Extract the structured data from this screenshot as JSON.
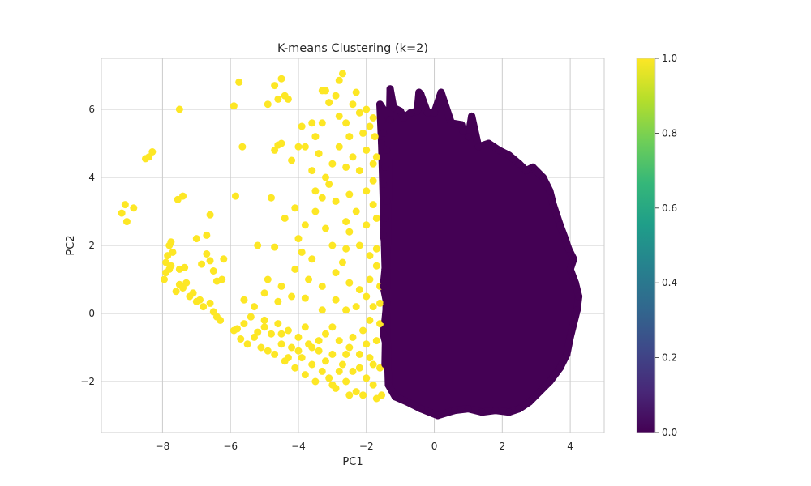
{
  "chart_data": {
    "type": "scatter",
    "title": "K-means Clustering (k=2)",
    "xlabel": "PC1",
    "ylabel": "PC2",
    "xlim": [
      -9.8,
      5.0
    ],
    "ylim": [
      -3.5,
      7.5
    ],
    "x_ticks": [
      -8,
      -6,
      -4,
      -2,
      0,
      2,
      4
    ],
    "x_tick_labels": [
      "−8",
      "−6",
      "−4",
      "−2",
      "0",
      "2",
      "4"
    ],
    "y_ticks": [
      -2,
      0,
      2,
      4,
      6
    ],
    "y_tick_labels": [
      "−2",
      "0",
      "2",
      "4",
      "6"
    ],
    "grid": true,
    "marker_size": 9,
    "colormap": "viridis",
    "colors": {
      "cluster_0": "#440154",
      "cluster_1": "#fde725",
      "grid": "#cccccc",
      "spine": "#cccccc",
      "text": "#262626"
    },
    "colorbar": {
      "range": [
        0.0,
        1.0
      ],
      "ticks": [
        0.0,
        0.2,
        0.4,
        0.6,
        0.8,
        1.0
      ],
      "tick_labels": [
        "0.0",
        "0.2",
        "0.4",
        "0.6",
        "0.8",
        "1.0"
      ],
      "stops": [
        "#440154",
        "#482878",
        "#3e4989",
        "#31688e",
        "#26828e",
        "#1f9e89",
        "#35b779",
        "#6ece58",
        "#b5de2b",
        "#fde725"
      ]
    },
    "series": [
      {
        "cluster": 1,
        "points": [
          [
            -9.2,
            2.95
          ],
          [
            -9.1,
            3.2
          ],
          [
            -9.05,
            2.7
          ],
          [
            -8.85,
            3.1
          ],
          [
            -8.5,
            4.55
          ],
          [
            -8.4,
            4.6
          ],
          [
            -8.3,
            4.75
          ],
          [
            -7.5,
            6.0
          ],
          [
            -7.4,
            3.45
          ],
          [
            -7.55,
            3.35
          ],
          [
            -6.6,
            2.9
          ],
          [
            -7.0,
            2.2
          ],
          [
            -6.7,
            2.3
          ],
          [
            -7.95,
            1.0
          ],
          [
            -7.9,
            1.2
          ],
          [
            -7.9,
            1.5
          ],
          [
            -7.85,
            1.7
          ],
          [
            -7.8,
            1.3
          ],
          [
            -7.8,
            2.0
          ],
          [
            -7.75,
            2.1
          ],
          [
            -7.75,
            1.4
          ],
          [
            -7.7,
            1.8
          ],
          [
            -7.5,
            1.3
          ],
          [
            -7.35,
            1.35
          ],
          [
            -7.6,
            0.65
          ],
          [
            -7.5,
            0.85
          ],
          [
            -7.4,
            0.75
          ],
          [
            -7.3,
            0.9
          ],
          [
            -7.2,
            0.5
          ],
          [
            -7.1,
            0.6
          ],
          [
            -7.0,
            0.35
          ],
          [
            -6.9,
            0.4
          ],
          [
            -6.8,
            0.2
          ],
          [
            -6.6,
            0.3
          ],
          [
            -6.5,
            0.05
          ],
          [
            -6.4,
            -0.1
          ],
          [
            -6.3,
            -0.2
          ],
          [
            -6.85,
            1.45
          ],
          [
            -6.7,
            1.75
          ],
          [
            -6.6,
            1.55
          ],
          [
            -6.5,
            1.25
          ],
          [
            -6.4,
            0.95
          ],
          [
            -6.25,
            1.0
          ],
          [
            -6.2,
            1.6
          ],
          [
            -5.9,
            6.1
          ],
          [
            -5.85,
            3.45
          ],
          [
            -5.75,
            6.8
          ],
          [
            -5.65,
            4.9
          ],
          [
            -5.9,
            -0.5
          ],
          [
            -5.8,
            -0.45
          ],
          [
            -5.7,
            -0.75
          ],
          [
            -5.6,
            -0.3
          ],
          [
            -5.5,
            -0.9
          ],
          [
            -5.4,
            -0.1
          ],
          [
            -5.3,
            -0.7
          ],
          [
            -5.2,
            -0.55
          ],
          [
            -5.1,
            -1.0
          ],
          [
            -5.0,
            -0.4
          ],
          [
            -5.0,
            -0.2
          ],
          [
            -4.9,
            -1.1
          ],
          [
            -4.8,
            -0.6
          ],
          [
            -4.7,
            -1.2
          ],
          [
            -4.6,
            -0.3
          ],
          [
            -4.5,
            -0.9
          ],
          [
            -4.4,
            -1.4
          ],
          [
            -4.3,
            -0.5
          ],
          [
            -4.2,
            -1.0
          ],
          [
            -4.1,
            -1.6
          ],
          [
            -4.0,
            -0.7
          ],
          [
            -3.9,
            -1.3
          ],
          [
            -3.8,
            -1.8
          ],
          [
            -3.7,
            -0.9
          ],
          [
            -3.6,
            -1.5
          ],
          [
            -3.5,
            -2.0
          ],
          [
            -3.4,
            -1.1
          ],
          [
            -3.3,
            -1.7
          ],
          [
            -3.2,
            -0.6
          ],
          [
            -3.1,
            -1.9
          ],
          [
            -3.0,
            -1.2
          ],
          [
            -2.9,
            -2.2
          ],
          [
            -2.8,
            -0.8
          ],
          [
            -2.7,
            -1.5
          ],
          [
            -2.6,
            -2.0
          ],
          [
            -2.5,
            -1.0
          ],
          [
            -2.4,
            -1.7
          ],
          [
            -2.3,
            -2.3
          ],
          [
            -2.2,
            -1.2
          ],
          [
            -2.1,
            -0.5
          ],
          [
            -2.0,
            -1.9
          ],
          [
            -1.9,
            -1.3
          ],
          [
            -1.8,
            -2.1
          ],
          [
            -1.7,
            -0.8
          ],
          [
            -1.6,
            -1.6
          ],
          [
            -1.55,
            -2.4
          ],
          [
            -4.5,
            -0.6
          ],
          [
            -4.3,
            -1.3
          ],
          [
            -4.0,
            -1.1
          ],
          [
            -3.8,
            -0.4
          ],
          [
            -3.6,
            -1.0
          ],
          [
            -3.4,
            -0.8
          ],
          [
            -3.2,
            -1.4
          ],
          [
            -3.0,
            -0.4
          ],
          [
            -2.8,
            -1.7
          ],
          [
            -2.6,
            -1.2
          ],
          [
            -2.4,
            -0.7
          ],
          [
            -2.2,
            -1.6
          ],
          [
            -2.0,
            -0.9
          ],
          [
            -1.8,
            -1.5
          ],
          [
            -1.7,
            -2.5
          ],
          [
            -2.5,
            -2.4
          ],
          [
            -3.0,
            -2.1
          ],
          [
            -2.1,
            -2.4
          ],
          [
            -1.6,
            -0.3
          ],
          [
            -1.9,
            -0.2
          ],
          [
            -5.6,
            0.4
          ],
          [
            -5.3,
            0.2
          ],
          [
            -5.0,
            0.6
          ],
          [
            -4.6,
            0.35
          ],
          [
            -4.2,
            0.5
          ],
          [
            -3.8,
            0.45
          ],
          [
            -3.3,
            0.1
          ],
          [
            -2.9,
            0.4
          ],
          [
            -2.6,
            0.1
          ],
          [
            -2.3,
            0.2
          ],
          [
            -2.0,
            0.5
          ],
          [
            -1.8,
            0.2
          ],
          [
            -1.6,
            0.3
          ],
          [
            -4.9,
            1.0
          ],
          [
            -4.5,
            0.8
          ],
          [
            -4.1,
            1.3
          ],
          [
            -3.7,
            1.0
          ],
          [
            -3.3,
            0.8
          ],
          [
            -2.9,
            1.2
          ],
          [
            -2.5,
            0.9
          ],
          [
            -2.2,
            0.7
          ],
          [
            -1.9,
            1.0
          ],
          [
            -1.7,
            1.4
          ],
          [
            -1.6,
            0.8
          ],
          [
            -5.2,
            2.0
          ],
          [
            -4.7,
            1.95
          ],
          [
            -4.0,
            2.2
          ],
          [
            -3.6,
            1.6
          ],
          [
            -3.0,
            2.0
          ],
          [
            -2.6,
            1.9
          ],
          [
            -2.2,
            2.0
          ],
          [
            -1.9,
            1.7
          ],
          [
            -1.7,
            1.9
          ],
          [
            -3.9,
            1.8
          ],
          [
            -2.7,
            1.5
          ],
          [
            -4.8,
            3.4
          ],
          [
            -4.4,
            2.8
          ],
          [
            -4.1,
            3.1
          ],
          [
            -3.8,
            2.6
          ],
          [
            -3.5,
            3.0
          ],
          [
            -3.2,
            2.5
          ],
          [
            -2.9,
            3.3
          ],
          [
            -2.6,
            2.7
          ],
          [
            -2.3,
            3.0
          ],
          [
            -2.0,
            2.6
          ],
          [
            -1.8,
            3.2
          ],
          [
            -1.7,
            2.8
          ],
          [
            -3.3,
            3.4
          ],
          [
            -2.5,
            2.4
          ],
          [
            -4.7,
            4.8
          ],
          [
            -4.6,
            4.95
          ],
          [
            -4.5,
            5.0
          ],
          [
            -4.2,
            4.5
          ],
          [
            -4.0,
            4.9
          ],
          [
            -3.8,
            4.9
          ],
          [
            -3.6,
            4.2
          ],
          [
            -3.4,
            4.7
          ],
          [
            -3.2,
            4.0
          ],
          [
            -3.0,
            4.4
          ],
          [
            -2.8,
            4.9
          ],
          [
            -2.6,
            4.3
          ],
          [
            -2.4,
            4.6
          ],
          [
            -2.2,
            4.2
          ],
          [
            -2.0,
            4.8
          ],
          [
            -1.8,
            4.4
          ],
          [
            -1.7,
            4.6
          ],
          [
            -3.5,
            3.6
          ],
          [
            -3.1,
            3.8
          ],
          [
            -2.5,
            3.5
          ],
          [
            -2.0,
            3.6
          ],
          [
            -1.8,
            3.9
          ],
          [
            -4.7,
            6.7
          ],
          [
            -4.5,
            6.9
          ],
          [
            -4.3,
            6.3
          ],
          [
            -4.6,
            6.3
          ],
          [
            -4.4,
            6.4
          ],
          [
            -4.9,
            6.15
          ],
          [
            -3.9,
            5.5
          ],
          [
            -3.6,
            5.6
          ],
          [
            -3.3,
            5.6
          ],
          [
            -3.1,
            6.2
          ],
          [
            -2.9,
            6.4
          ],
          [
            -2.8,
            5.8
          ],
          [
            -2.6,
            5.6
          ],
          [
            -2.4,
            6.15
          ],
          [
            -2.3,
            6.5
          ],
          [
            -2.2,
            5.9
          ],
          [
            -2.0,
            6.0
          ],
          [
            -1.9,
            5.5
          ],
          [
            -1.8,
            5.75
          ],
          [
            -1.75,
            5.2
          ],
          [
            -3.2,
            6.55
          ],
          [
            -2.8,
            6.85
          ],
          [
            -3.5,
            5.2
          ],
          [
            -2.5,
            5.2
          ],
          [
            -2.1,
            5.3
          ],
          [
            -2.7,
            7.05
          ],
          [
            -3.3,
            6.55
          ]
        ]
      },
      {
        "cluster": 0,
        "points": [
          [
            -1.3,
            6.6
          ],
          [
            -1.2,
            6.05
          ],
          [
            -1.0,
            5.95
          ],
          [
            -0.9,
            5.75
          ],
          [
            -0.7,
            5.9
          ],
          [
            -0.5,
            5.95
          ],
          [
            -0.45,
            6.5
          ],
          [
            -0.4,
            6.45
          ],
          [
            -0.2,
            5.9
          ],
          [
            0.0,
            5.9
          ],
          [
            0.2,
            6.5
          ],
          [
            0.5,
            5.6
          ],
          [
            0.8,
            5.55
          ],
          [
            0.85,
            5.35
          ],
          [
            1.0,
            5.2
          ],
          [
            1.1,
            5.8
          ],
          [
            1.3,
            4.9
          ],
          [
            1.6,
            5.0
          ],
          [
            1.9,
            4.8
          ],
          [
            2.2,
            4.65
          ],
          [
            2.5,
            4.4
          ],
          [
            2.7,
            4.2
          ],
          [
            2.9,
            4.3
          ],
          [
            3.2,
            4.0
          ],
          [
            3.4,
            3.6
          ],
          [
            3.5,
            3.2
          ],
          [
            3.6,
            2.9
          ],
          [
            3.7,
            2.6
          ],
          [
            3.85,
            2.2
          ],
          [
            3.95,
            1.9
          ],
          [
            4.1,
            1.6
          ],
          [
            4.0,
            1.3
          ],
          [
            4.15,
            0.9
          ],
          [
            4.25,
            0.5
          ],
          [
            4.2,
            0.1
          ],
          [
            4.1,
            -0.3
          ],
          [
            4.0,
            -0.7
          ],
          [
            3.9,
            -1.2
          ],
          [
            3.7,
            -1.6
          ],
          [
            3.4,
            -2.0
          ],
          [
            3.1,
            -2.3
          ],
          [
            2.8,
            -2.6
          ],
          [
            2.5,
            -2.8
          ],
          [
            2.2,
            -2.9
          ],
          [
            1.8,
            -2.85
          ],
          [
            1.4,
            -2.9
          ],
          [
            1.0,
            -2.8
          ],
          [
            0.6,
            -2.85
          ],
          [
            0.1,
            -3.0
          ],
          [
            -0.4,
            -2.8
          ],
          [
            -0.8,
            -2.6
          ],
          [
            -1.15,
            -2.45
          ],
          [
            -1.35,
            -2.1
          ],
          [
            -1.45,
            -1.5
          ],
          [
            -1.4,
            -1.0
          ],
          [
            -1.5,
            -0.6
          ],
          [
            -1.45,
            -0.2
          ],
          [
            -1.4,
            0.3
          ],
          [
            -1.5,
            0.8
          ],
          [
            -1.45,
            1.3
          ],
          [
            -1.4,
            1.8
          ],
          [
            -1.5,
            2.3
          ],
          [
            -1.45,
            2.8
          ],
          [
            -1.4,
            3.3
          ],
          [
            -1.5,
            3.8
          ],
          [
            -1.45,
            4.3
          ],
          [
            -1.4,
            4.8
          ],
          [
            -1.5,
            5.3
          ],
          [
            -1.3,
            5.7
          ],
          [
            -1.6,
            6.15
          ],
          [
            -1.55,
            5.0
          ]
        ],
        "scatter_note": "plus a dense filled cloud spanning the bounded region"
      }
    ]
  }
}
